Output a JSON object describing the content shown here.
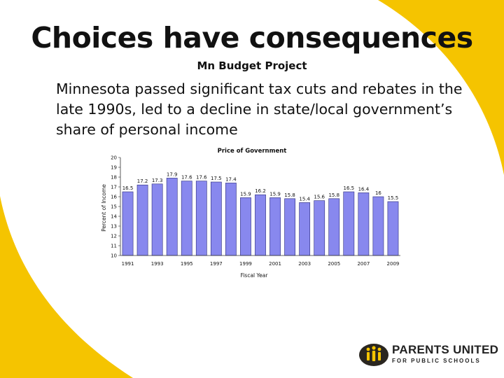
{
  "slide": {
    "title": "Choices have consequences",
    "subtitle": "Mn Budget Project",
    "body": "Minnesota passed significant tax cuts and rebates in the late 1990s, led to a decline in state/local government’s share of personal income",
    "accent_color": "#f5c400"
  },
  "logo": {
    "line1": "PARENTS UNITED",
    "line2": "FOR PUBLIC SCHOOLS",
    "icon": "people-icon"
  },
  "chart_data": {
    "type": "bar",
    "title": "Price of Government",
    "xlabel": "Fiscal Year",
    "ylabel": "Percent of Income",
    "ylim": [
      10,
      20
    ],
    "yticks": [
      10,
      11,
      12,
      13,
      14,
      15,
      16,
      17,
      18,
      19,
      20
    ],
    "x_tick_labels": [
      "1991",
      "1993",
      "1995",
      "1997",
      "1999",
      "2001",
      "2003",
      "2005",
      "2007",
      "2009"
    ],
    "categories": [
      "1991",
      "1992",
      "1993",
      "1994",
      "1995",
      "1996",
      "1997",
      "1998",
      "1999",
      "2000",
      "2001",
      "2002",
      "2003",
      "2004",
      "2005",
      "2006",
      "2007",
      "2008",
      "2009"
    ],
    "values": [
      16.5,
      17.2,
      17.3,
      17.9,
      17.6,
      17.6,
      17.5,
      17.4,
      15.9,
      16.2,
      15.9,
      15.8,
      15.4,
      15.6,
      15.8,
      16.5,
      16.4,
      16,
      15.5
    ],
    "bar_color": "#8888ee",
    "grid": false,
    "legend": "none"
  }
}
